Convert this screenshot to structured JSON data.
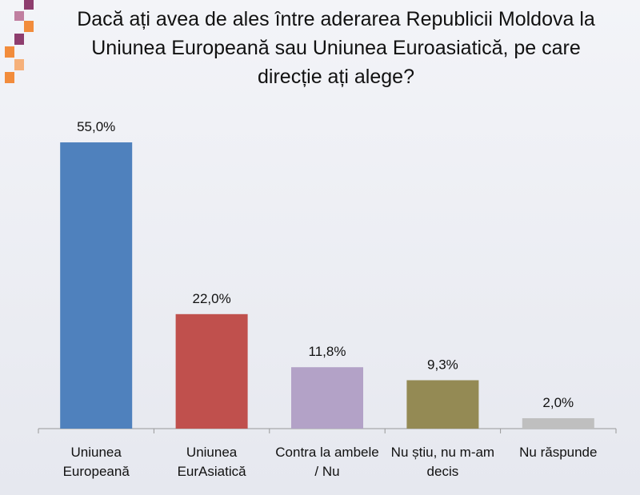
{
  "chart_data": {
    "type": "bar",
    "title": "Dacă ați avea de ales între aderarea Republicii Moldova  la Uniunea Europeană sau Uniunea Euroasiatică, pe care direcție ați alege?",
    "categories": [
      "Uniunea Europeană",
      "Uniunea EurAsiatică",
      "Contra la ambele / Nu",
      "Nu știu, nu m-am decis",
      "Nu răspunde"
    ],
    "values": [
      55.0,
      22.0,
      11.8,
      9.3,
      2.0
    ],
    "value_labels": [
      "55,0%",
      "22,0%",
      "11,8%",
      "9,3%",
      "2,0%"
    ],
    "colors": [
      "#4f81bd",
      "#c0504d",
      "#b3a2c7",
      "#948a54",
      "#bfbfbf"
    ],
    "ylim": [
      0,
      60
    ]
  }
}
